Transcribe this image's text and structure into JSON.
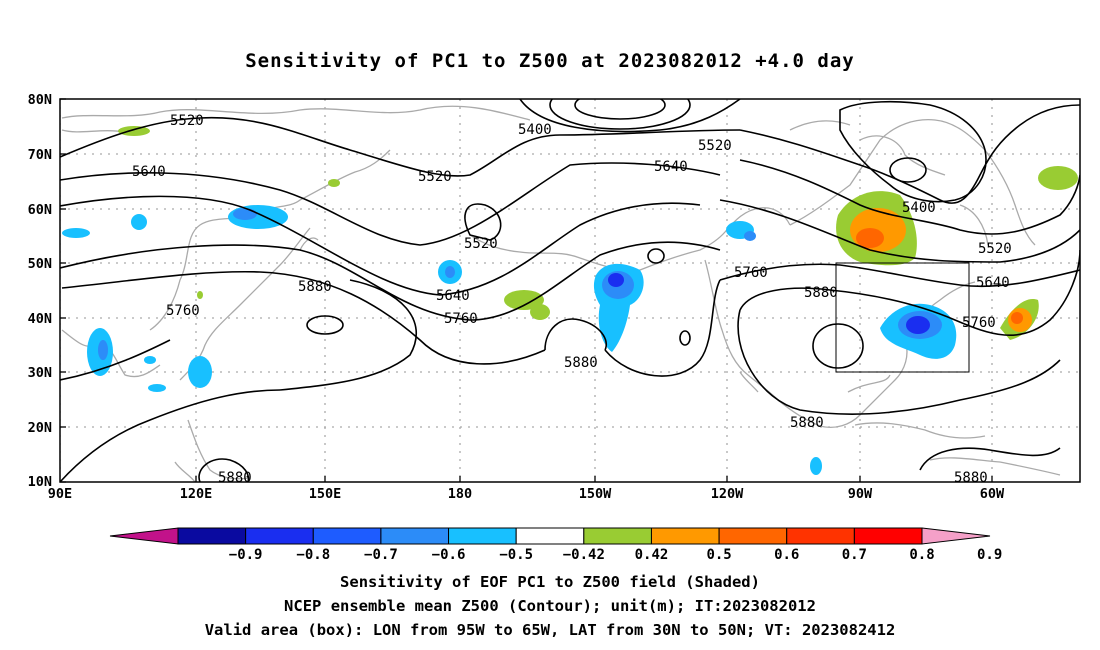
{
  "title": "Sensitivity of PC1 to Z500 at 2023082012 +4.0 day",
  "y_axis_labels": [
    "80N",
    "70N",
    "60N",
    "50N",
    "40N",
    "30N",
    "20N",
    "10N"
  ],
  "x_axis_labels": [
    "90E",
    "120E",
    "150E",
    "180",
    "150W",
    "120W",
    "90W",
    "60W"
  ],
  "contour_labels": {
    "c5520_w": "5520",
    "c5400": "5400",
    "c5520_n": "5520",
    "c5640_n": "5640",
    "c5640_w": "5640",
    "c5520_m": "5520",
    "c5520_s": "5520",
    "c5640_s": "5640",
    "c5760_s": "5760",
    "c5880_w": "5880",
    "c5760_w": "5760",
    "c5880_s": "5880",
    "c5760_e": "5760",
    "c5880_e": "5880",
    "c5400_e": "5400",
    "c5520_e": "5520",
    "c5640_e": "5640",
    "c5760_box": "5760",
    "c5880_gulf": "5880",
    "c5880_sw": "5880",
    "c5880_se": "5880"
  },
  "colorbar": {
    "labels": [
      "−0.9",
      "−0.8",
      "−0.7",
      "−0.6",
      "−0.5",
      "−0.42",
      "0.42",
      "0.5",
      "0.6",
      "0.7",
      "0.8",
      "0.9"
    ],
    "colors": [
      "#c2128a",
      "#0a0aa0",
      "#1a2ef0",
      "#1e5cff",
      "#2c8cf8",
      "#18c0ff",
      "#ffffff",
      "#99cc33",
      "#ff9900",
      "#ff6600",
      "#ff3300",
      "#ff0000",
      "#f5a0c8"
    ]
  },
  "captions": {
    "line1": "Sensitivity of EOF PC1 to Z500 field (Shaded)",
    "line2": "NCEP ensemble mean Z500 (Contour); unit(m); IT:2023082012",
    "line3": "Valid area (box): LON from 95W to 65W, LAT from 30N to 50N; VT: 2023082412"
  }
}
